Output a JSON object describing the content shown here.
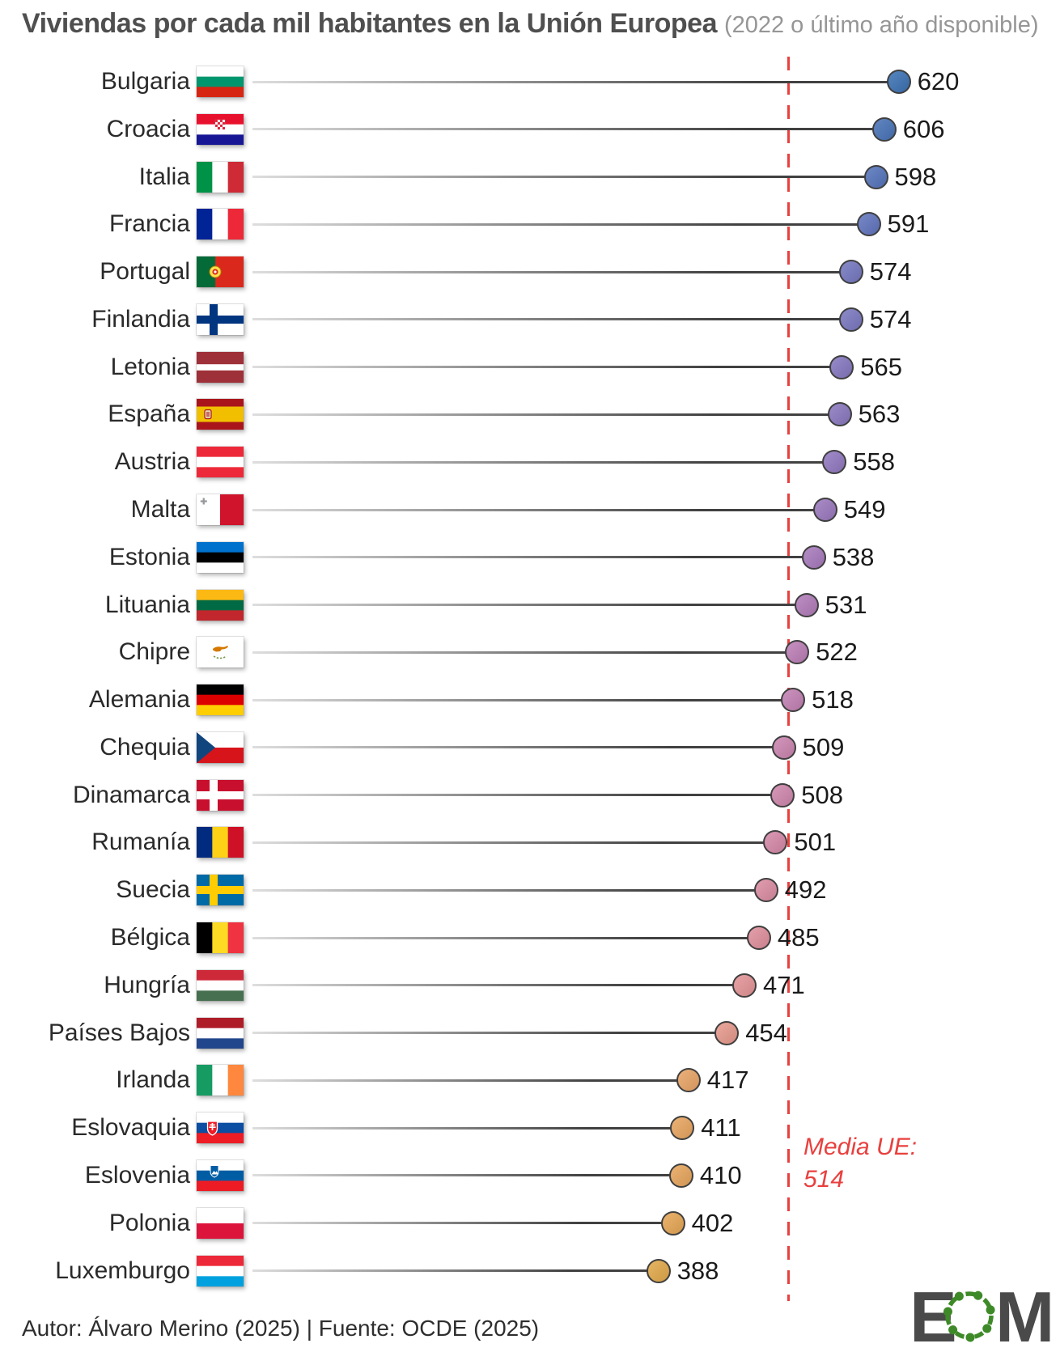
{
  "title": {
    "main": "Viviendas por cada mil habitantes en la Unión Europea",
    "subtitle": "(2022 o último año disponible)"
  },
  "chart_data": {
    "type": "bar",
    "variant": "horizontal-lollipop",
    "title": "Viviendas por cada mil habitantes en la Unión Europea",
    "subtitle": "(2022 o último año disponible)",
    "grid": false,
    "legend": false,
    "data_labels": true,
    "categories": [
      "Bulgaria",
      "Croacia",
      "Italia",
      "Francia",
      "Portugal",
      "Finlandia",
      "Letonia",
      "España",
      "Austria",
      "Malta",
      "Estonia",
      "Lituania",
      "Chipre",
      "Alemania",
      "Chequia",
      "Dinamarca",
      "Rumanía",
      "Suecia",
      "Bélgica",
      "Hungría",
      "Países Bajos",
      "Irlanda",
      "Eslovaquia",
      "Eslovenia",
      "Polonia",
      "Luxemburgo"
    ],
    "values": [
      620,
      606,
      598,
      591,
      574,
      574,
      565,
      563,
      558,
      549,
      538,
      531,
      522,
      518,
      509,
      508,
      501,
      492,
      485,
      471,
      454,
      417,
      411,
      410,
      402,
      388
    ],
    "dot_colors": [
      "#3c72b4",
      "#4873b8",
      "#5574bc",
      "#6175bf",
      "#7578c1",
      "#7b78c1",
      "#8678c1",
      "#8b78c0",
      "#9279c1",
      "#9c79bf",
      "#a87abd",
      "#b27cba",
      "#bd7fb7",
      "#c481b4",
      "#cc85b0",
      "#d087ad",
      "#d689a8",
      "#dc8da3",
      "#e0909d",
      "#e59497",
      "#e89a8d",
      "#e9a566",
      "#e9a660",
      "#e8a65d",
      "#e7a755",
      "#e3aa4a"
    ],
    "reference_line": {
      "label": "Media UE:",
      "value_text": "514",
      "value": 514,
      "color": "#e8403e",
      "style": "dashed"
    },
    "colors": {
      "stem_light": "#dedede",
      "stem_dark": "#414141",
      "dot_border": "#3f3f3f"
    },
    "flags": [
      {
        "name": "bulgaria-flag",
        "type": "h",
        "colors": [
          "#ffffff",
          "#00966e",
          "#d62612"
        ]
      },
      {
        "name": "croatia-flag",
        "type": "h",
        "colors": [
          "#e8112d",
          "#ffffff",
          "#171796"
        ],
        "emblem": "croatia-checkerboard"
      },
      {
        "name": "italy-flag",
        "type": "v",
        "colors": [
          "#009246",
          "#ffffff",
          "#ce2b37"
        ]
      },
      {
        "name": "france-flag",
        "type": "v",
        "colors": [
          "#002395",
          "#ffffff",
          "#ed2939"
        ]
      },
      {
        "name": "portugal-flag",
        "type": "v",
        "colors": [
          "#046a38",
          "#da291c"
        ],
        "weights": [
          2,
          3
        ],
        "emblem": "portugal-sphere"
      },
      {
        "name": "finland-flag",
        "type": "nordic",
        "bg": "#ffffff",
        "cross": "#003580"
      },
      {
        "name": "latvia-flag",
        "type": "h",
        "colors": [
          "#9e3039",
          "#ffffff",
          "#9e3039"
        ],
        "weights": [
          2,
          1,
          2
        ]
      },
      {
        "name": "spain-flag",
        "type": "h",
        "colors": [
          "#aa151b",
          "#f1bf00",
          "#aa151b"
        ],
        "weights": [
          1,
          2,
          1
        ],
        "emblem": "spain-arms"
      },
      {
        "name": "austria-flag",
        "type": "h",
        "colors": [
          "#ed2939",
          "#ffffff",
          "#ed2939"
        ]
      },
      {
        "name": "malta-flag",
        "type": "v",
        "colors": [
          "#ffffff",
          "#cf142b"
        ],
        "emblem": "malta-cross"
      },
      {
        "name": "estonia-flag",
        "type": "h",
        "colors": [
          "#0072ce",
          "#000000",
          "#ffffff"
        ]
      },
      {
        "name": "lithuania-flag",
        "type": "h",
        "colors": [
          "#fdb913",
          "#006a44",
          "#c1272d"
        ]
      },
      {
        "name": "cyprus-flag",
        "type": "h",
        "colors": [
          "#ffffff"
        ],
        "emblem": "cyprus-island"
      },
      {
        "name": "germany-flag",
        "type": "h",
        "colors": [
          "#000000",
          "#dd0000",
          "#ffce00"
        ]
      },
      {
        "name": "czechia-flag",
        "type": "h",
        "colors": [
          "#ffffff",
          "#d7141a"
        ],
        "emblem": "czech-triangle"
      },
      {
        "name": "denmark-flag",
        "type": "nordic",
        "bg": "#c8102e",
        "cross": "#ffffff"
      },
      {
        "name": "romania-flag",
        "type": "v",
        "colors": [
          "#002b7f",
          "#fcd116",
          "#ce1126"
        ]
      },
      {
        "name": "sweden-flag",
        "type": "nordic",
        "bg": "#006aa7",
        "cross": "#fecc00"
      },
      {
        "name": "belgium-flag",
        "type": "v",
        "colors": [
          "#000000",
          "#fdda24",
          "#ef3340"
        ]
      },
      {
        "name": "hungary-flag",
        "type": "h",
        "colors": [
          "#ce2939",
          "#ffffff",
          "#477050"
        ]
      },
      {
        "name": "netherlands-flag",
        "type": "h",
        "colors": [
          "#ae1c28",
          "#ffffff",
          "#21468b"
        ]
      },
      {
        "name": "ireland-flag",
        "type": "v",
        "colors": [
          "#169b62",
          "#ffffff",
          "#ff883e"
        ]
      },
      {
        "name": "slovakia-flag",
        "type": "h",
        "colors": [
          "#ffffff",
          "#0b4ea2",
          "#ee1c25"
        ],
        "emblem": "slovakia-shield"
      },
      {
        "name": "slovenia-flag",
        "type": "h",
        "colors": [
          "#ffffff",
          "#005da4",
          "#ed1c24"
        ],
        "emblem": "slovenia-shield"
      },
      {
        "name": "poland-flag",
        "type": "h",
        "colors": [
          "#ffffff",
          "#dc143c"
        ]
      },
      {
        "name": "luxembourg-flag",
        "type": "h",
        "colors": [
          "#ed2939",
          "#ffffff",
          "#00a1de"
        ]
      }
    ]
  },
  "footer": {
    "credit": "Autor: Álvaro Merino (2025) | Fuente: OCDE (2025)",
    "logo": {
      "left": "E",
      "right": "M",
      "o_icon": "dotted-circle-o-icon",
      "letters_color": "#4a4a4a",
      "o_color": "#3e8a28"
    }
  }
}
